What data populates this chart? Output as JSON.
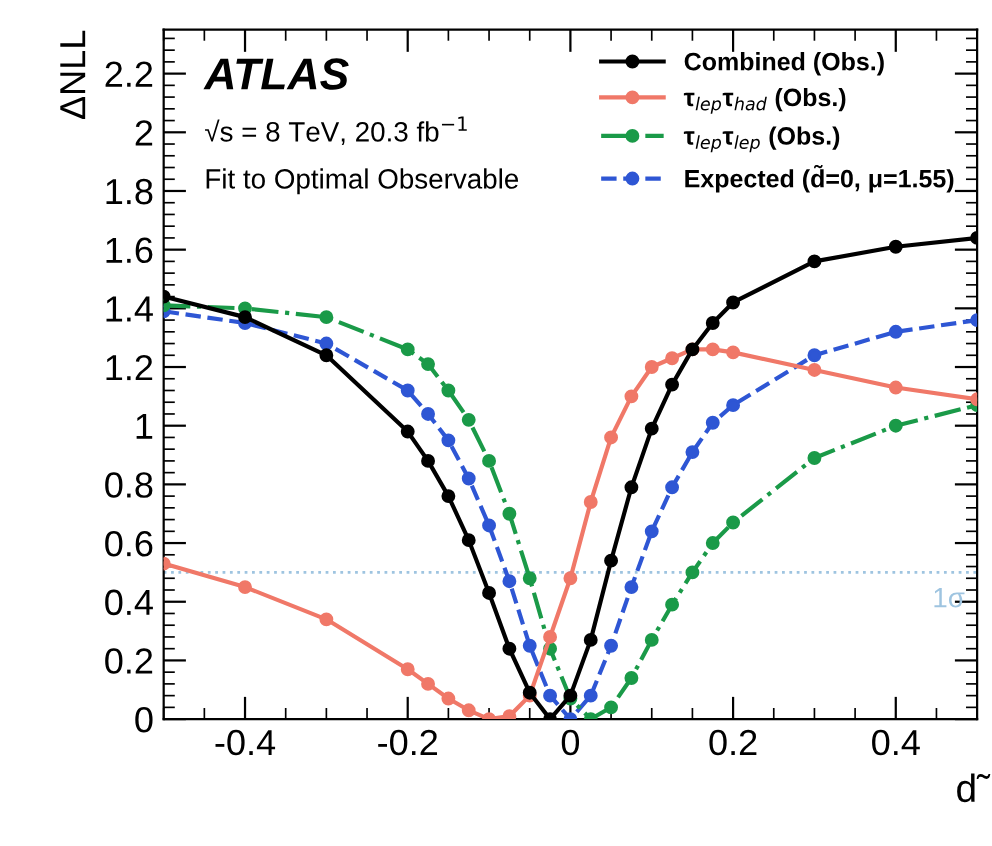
{
  "chart_data": {
    "type": "line",
    "xlabel": "d̃",
    "ylabel": "ΔNLL",
    "xlim": [
      -0.5,
      0.5
    ],
    "ylim": [
      0,
      2.35
    ],
    "xticks": [
      -0.4,
      -0.2,
      0,
      0.2,
      0.4
    ],
    "yticks": [
      0,
      0.2,
      0.4,
      0.6,
      0.8,
      1,
      1.2,
      1.4,
      1.6,
      1.8,
      2,
      2.2
    ],
    "grid": false,
    "legend": "top right",
    "marker": "circle",
    "annotations": [
      "ATLAS",
      "√s = 8 TeV, 20.3 fb$^{−1}$",
      "Fit to Optimal Observable"
    ],
    "ref_lines": [
      {
        "axis": "y",
        "value": 0.5,
        "label": "1σ",
        "color": "#9ec4e0",
        "line_style": "dotted"
      }
    ],
    "series": [
      {
        "name": "Combined (Obs.)",
        "color": "#000000",
        "line_style": "solid",
        "x": [
          -0.5,
          -0.4,
          -0.3,
          -0.2,
          -0.175,
          -0.15,
          -0.125,
          -0.1,
          -0.075,
          -0.05,
          -0.025,
          0,
          0.025,
          0.05,
          0.075,
          0.1,
          0.125,
          0.15,
          0.175,
          0.2,
          0.3,
          0.4,
          0.5
        ],
        "values": [
          1.44,
          1.37,
          1.24,
          0.98,
          0.88,
          0.76,
          0.61,
          0.43,
          0.24,
          0.09,
          0,
          0.08,
          0.27,
          0.54,
          0.79,
          0.99,
          1.14,
          1.26,
          1.35,
          1.42,
          1.56,
          1.61,
          1.64
        ]
      },
      {
        "name": "τ$_{lep}$τ$_{had}$ (Obs.)",
        "color": "#f07868",
        "line_style": "solid",
        "x": [
          -0.5,
          -0.4,
          -0.3,
          -0.2,
          -0.175,
          -0.15,
          -0.125,
          -0.1,
          -0.075,
          -0.05,
          -0.025,
          0,
          0.025,
          0.05,
          0.075,
          0.1,
          0.125,
          0.15,
          0.175,
          0.2,
          0.3,
          0.4,
          0.5
        ],
        "values": [
          0.53,
          0.45,
          0.34,
          0.17,
          0.12,
          0.07,
          0.03,
          0,
          0.01,
          0.08,
          0.28,
          0.48,
          0.74,
          0.96,
          1.1,
          1.2,
          1.23,
          1.26,
          1.26,
          1.25,
          1.19,
          1.13,
          1.09
        ]
      },
      {
        "name": "τ$_{lep}$τ$_{lep}$ (Obs.)",
        "color": "#1a9a48",
        "line_style": "dashdot",
        "x": [
          -0.5,
          -0.4,
          -0.3,
          -0.2,
          -0.175,
          -0.15,
          -0.125,
          -0.1,
          -0.075,
          -0.05,
          -0.025,
          0,
          0.025,
          0.05,
          0.075,
          0.1,
          0.125,
          0.15,
          0.175,
          0.2,
          0.3,
          0.4,
          0.5
        ],
        "values": [
          1.41,
          1.4,
          1.37,
          1.26,
          1.21,
          1.12,
          1.02,
          0.88,
          0.7,
          0.48,
          0.24,
          0.07,
          0,
          0.04,
          0.14,
          0.27,
          0.39,
          0.5,
          0.6,
          0.67,
          0.89,
          1.0,
          1.07
        ]
      },
      {
        "name": "Expected (d̃=0, μ=1.55)",
        "color": "#2e56d4",
        "line_style": "dashed",
        "x": [
          -0.5,
          -0.4,
          -0.3,
          -0.2,
          -0.175,
          -0.15,
          -0.125,
          -0.1,
          -0.075,
          -0.05,
          -0.025,
          0,
          0.025,
          0.05,
          0.075,
          0.1,
          0.125,
          0.15,
          0.175,
          0.2,
          0.3,
          0.4,
          0.5
        ],
        "values": [
          1.39,
          1.35,
          1.28,
          1.12,
          1.04,
          0.95,
          0.82,
          0.66,
          0.47,
          0.25,
          0.08,
          0,
          0.08,
          0.25,
          0.45,
          0.64,
          0.79,
          0.91,
          1.01,
          1.07,
          1.24,
          1.32,
          1.36
        ]
      }
    ]
  }
}
